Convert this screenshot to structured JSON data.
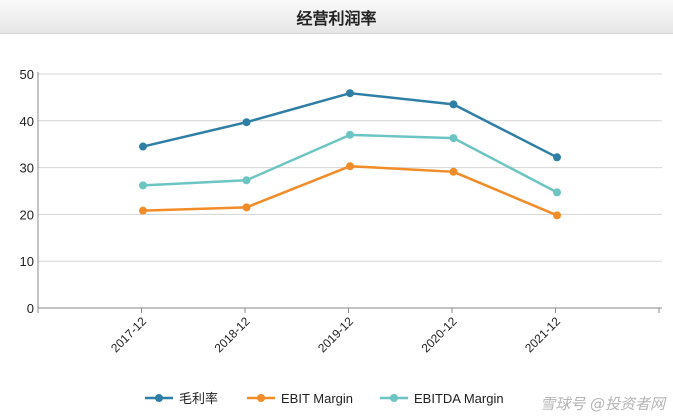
{
  "header": {
    "title": "经营利润率"
  },
  "watermark": "雪球号 @投资者网",
  "chart_data": {
    "type": "line",
    "title": "经营利润率",
    "xlabel": "",
    "ylabel": "",
    "categories": [
      "2017-12",
      "2018-12",
      "2019-12",
      "2020-12",
      "2021-12"
    ],
    "ylim": [
      0,
      50
    ],
    "yticks": [
      0,
      10,
      20,
      30,
      40,
      50
    ],
    "grid": true,
    "legend_position": "bottom",
    "series": [
      {
        "name": "毛利率",
        "color": "#2f7ea6",
        "values": [
          34.5,
          39.7,
          45.9,
          43.5,
          32.2
        ]
      },
      {
        "name": "EBIT Margin",
        "color": "#f28c28",
        "values": [
          20.8,
          21.5,
          30.3,
          29.1,
          19.8
        ]
      },
      {
        "name": "EBITDA Margin",
        "color": "#6cc5c3",
        "values": [
          26.2,
          27.3,
          37.0,
          36.3,
          24.7
        ]
      }
    ]
  }
}
